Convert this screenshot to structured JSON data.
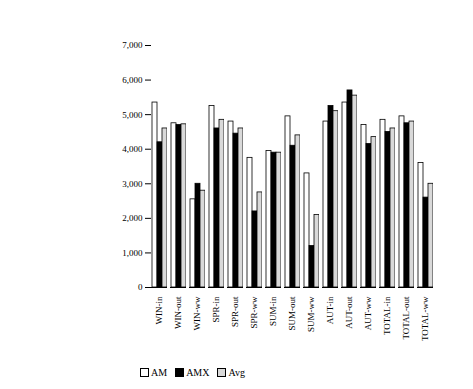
{
  "chart_data": {
    "type": "bar",
    "categories": [
      "WIN-in",
      "WIN-out",
      "WIN-ww",
      "SPR-in",
      "SPR-out",
      "SPR-ww",
      "SUM-in",
      "SUM-out",
      "SUM-ww",
      "AUT-in",
      "AUT-out",
      "AUT-ww",
      "TOTAL-in",
      "TOTAL-out",
      "TOTAL-ww"
    ],
    "series": [
      {
        "name": "AM",
        "color": "#ffffff",
        "values": [
          5350,
          4750,
          2550,
          5250,
          4800,
          3750,
          3950,
          4950,
          3300,
          4800,
          5350,
          4700,
          4850,
          4950,
          3600
        ]
      },
      {
        "name": "AMX",
        "color": "#000000",
        "values": [
          4200,
          4700,
          3000,
          4600,
          4450,
          2200,
          3900,
          4100,
          1200,
          5250,
          5700,
          4150,
          4500,
          4750,
          2600
        ]
      },
      {
        "name": "Avg",
        "color": "#d9d9d9",
        "values": [
          4600,
          4720,
          2800,
          4850,
          4600,
          2750,
          3900,
          4400,
          2100,
          5100,
          5550,
          4350,
          4600,
          4800,
          3000
        ]
      }
    ],
    "ylim": [
      0,
      7000
    ],
    "yticks": [
      0,
      {
        "value": 1000,
        "label": "1,000"
      },
      {
        "value": 2000,
        "label": "2,000"
      },
      {
        "value": 3000,
        "label": "3,000"
      },
      {
        "value": 4000,
        "label": "4,000"
      },
      {
        "value": 5000,
        "label": "5,000"
      },
      {
        "value": 6000,
        "label": "6,000"
      },
      {
        "value": 7000,
        "label": "7,000"
      }
    ],
    "grid": false,
    "legend": "bottom-left"
  }
}
